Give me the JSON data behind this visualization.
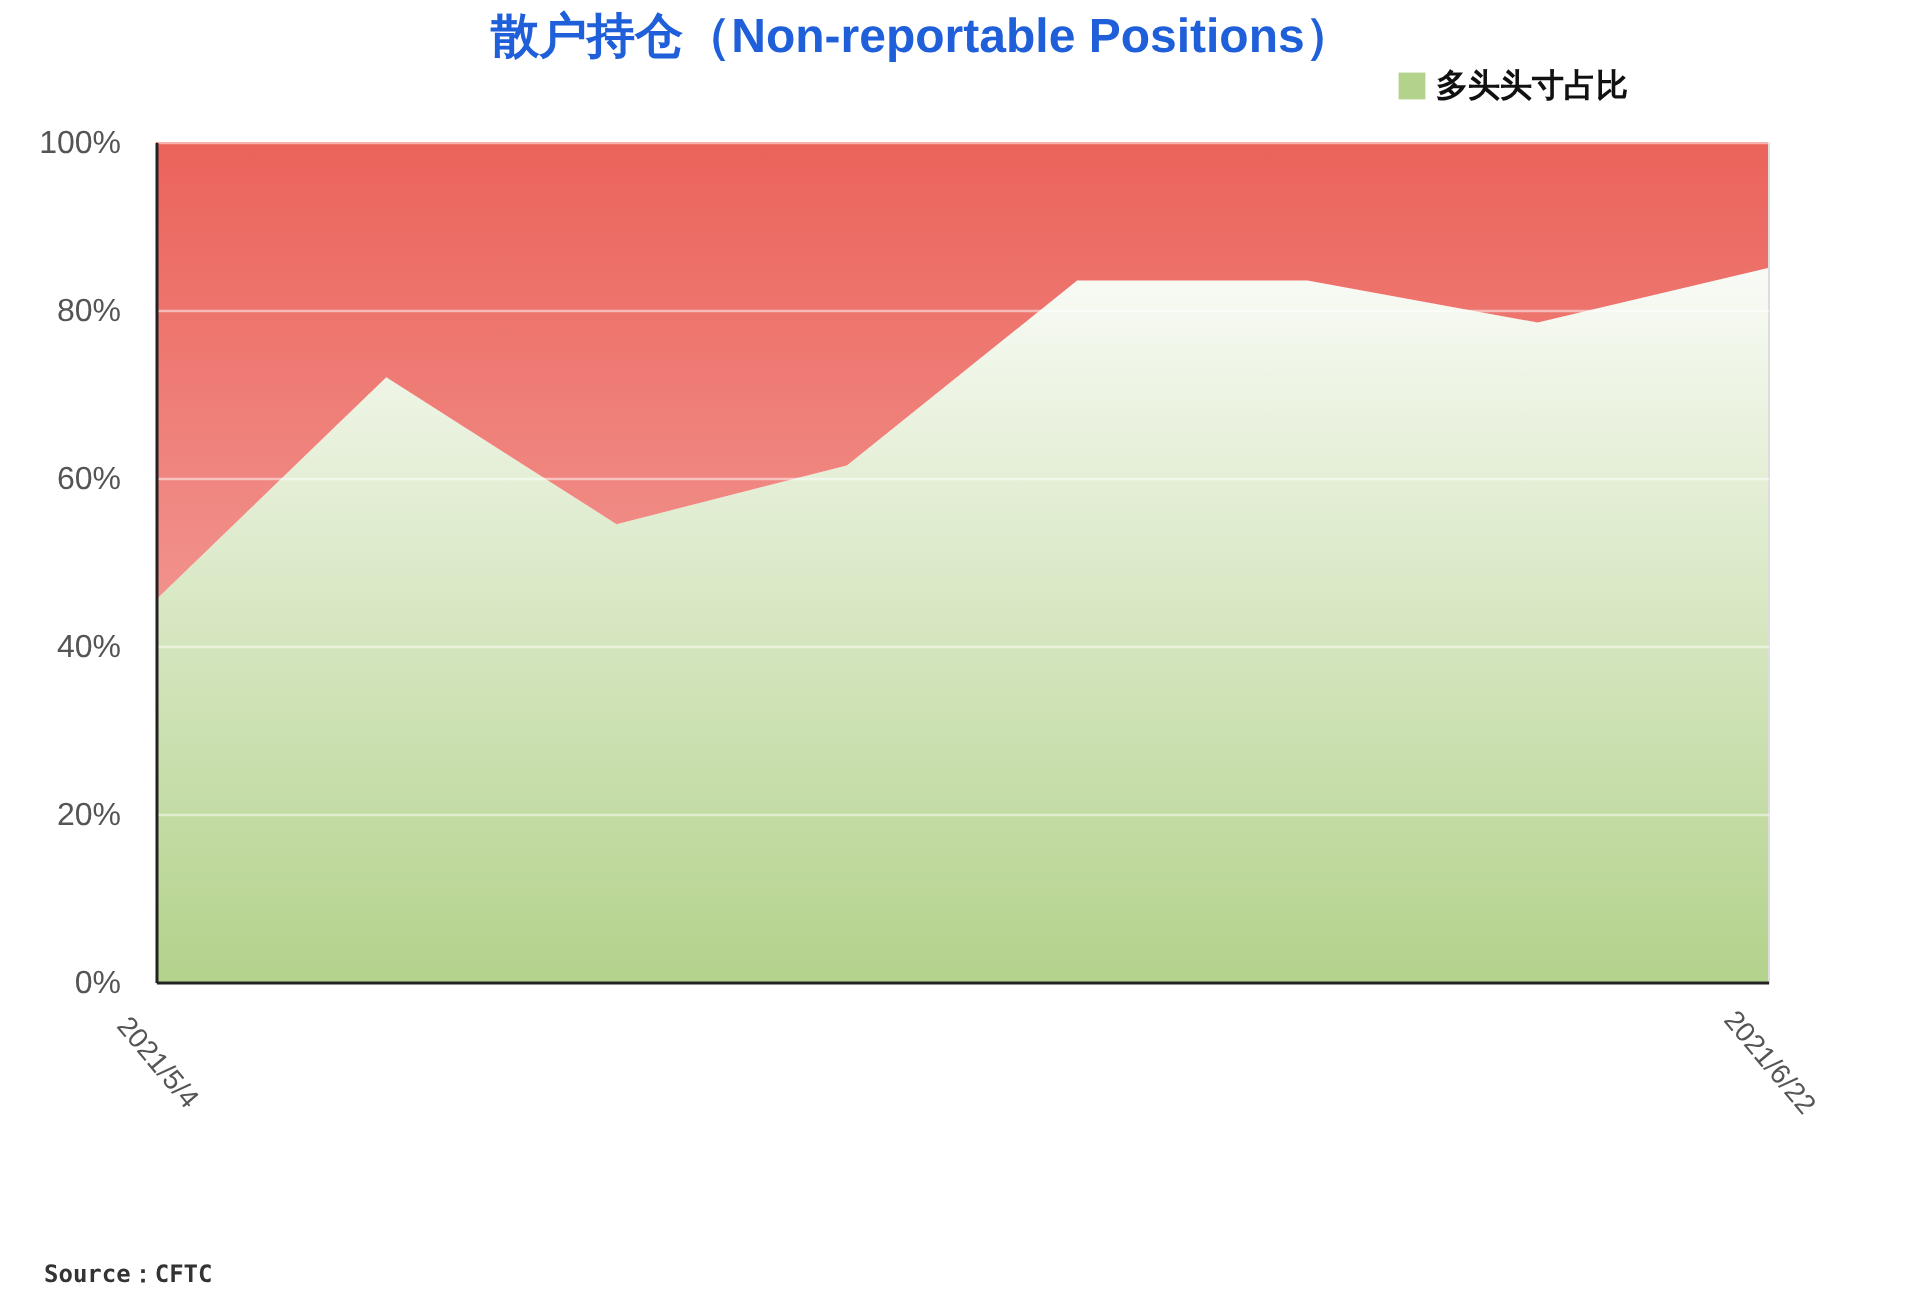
{
  "chart_data": {
    "type": "area",
    "title": "散户持仓（Non-reportable Positions）",
    "categories": [
      "2021/5/4",
      null,
      null,
      null,
      null,
      null,
      null,
      "2021/6/22"
    ],
    "stacked": true,
    "series": [
      {
        "name": "多头头寸占比",
        "color": "#b3d28b",
        "values": [
          45.5,
          72,
          54.5,
          61.5,
          83.5,
          83.5,
          78.5,
          85
        ]
      },
      {
        "color": "#eb635b",
        "values": [
          54.5,
          28,
          45.5,
          38.5,
          16.5,
          16.5,
          21.5,
          15
        ]
      }
    ],
    "ylim": [
      0,
      100
    ],
    "yticks": [
      {
        "value": 0,
        "label": "0%"
      },
      {
        "value": 20,
        "label": "20%"
      },
      {
        "value": 40,
        "label": "40%"
      },
      {
        "value": 60,
        "label": "60%"
      },
      {
        "value": 80,
        "label": "80%"
      },
      {
        "value": 100,
        "label": "100%"
      }
    ],
    "grid": "y",
    "legend": "top right",
    "annotations": [
      "Source：CFTC"
    ]
  }
}
